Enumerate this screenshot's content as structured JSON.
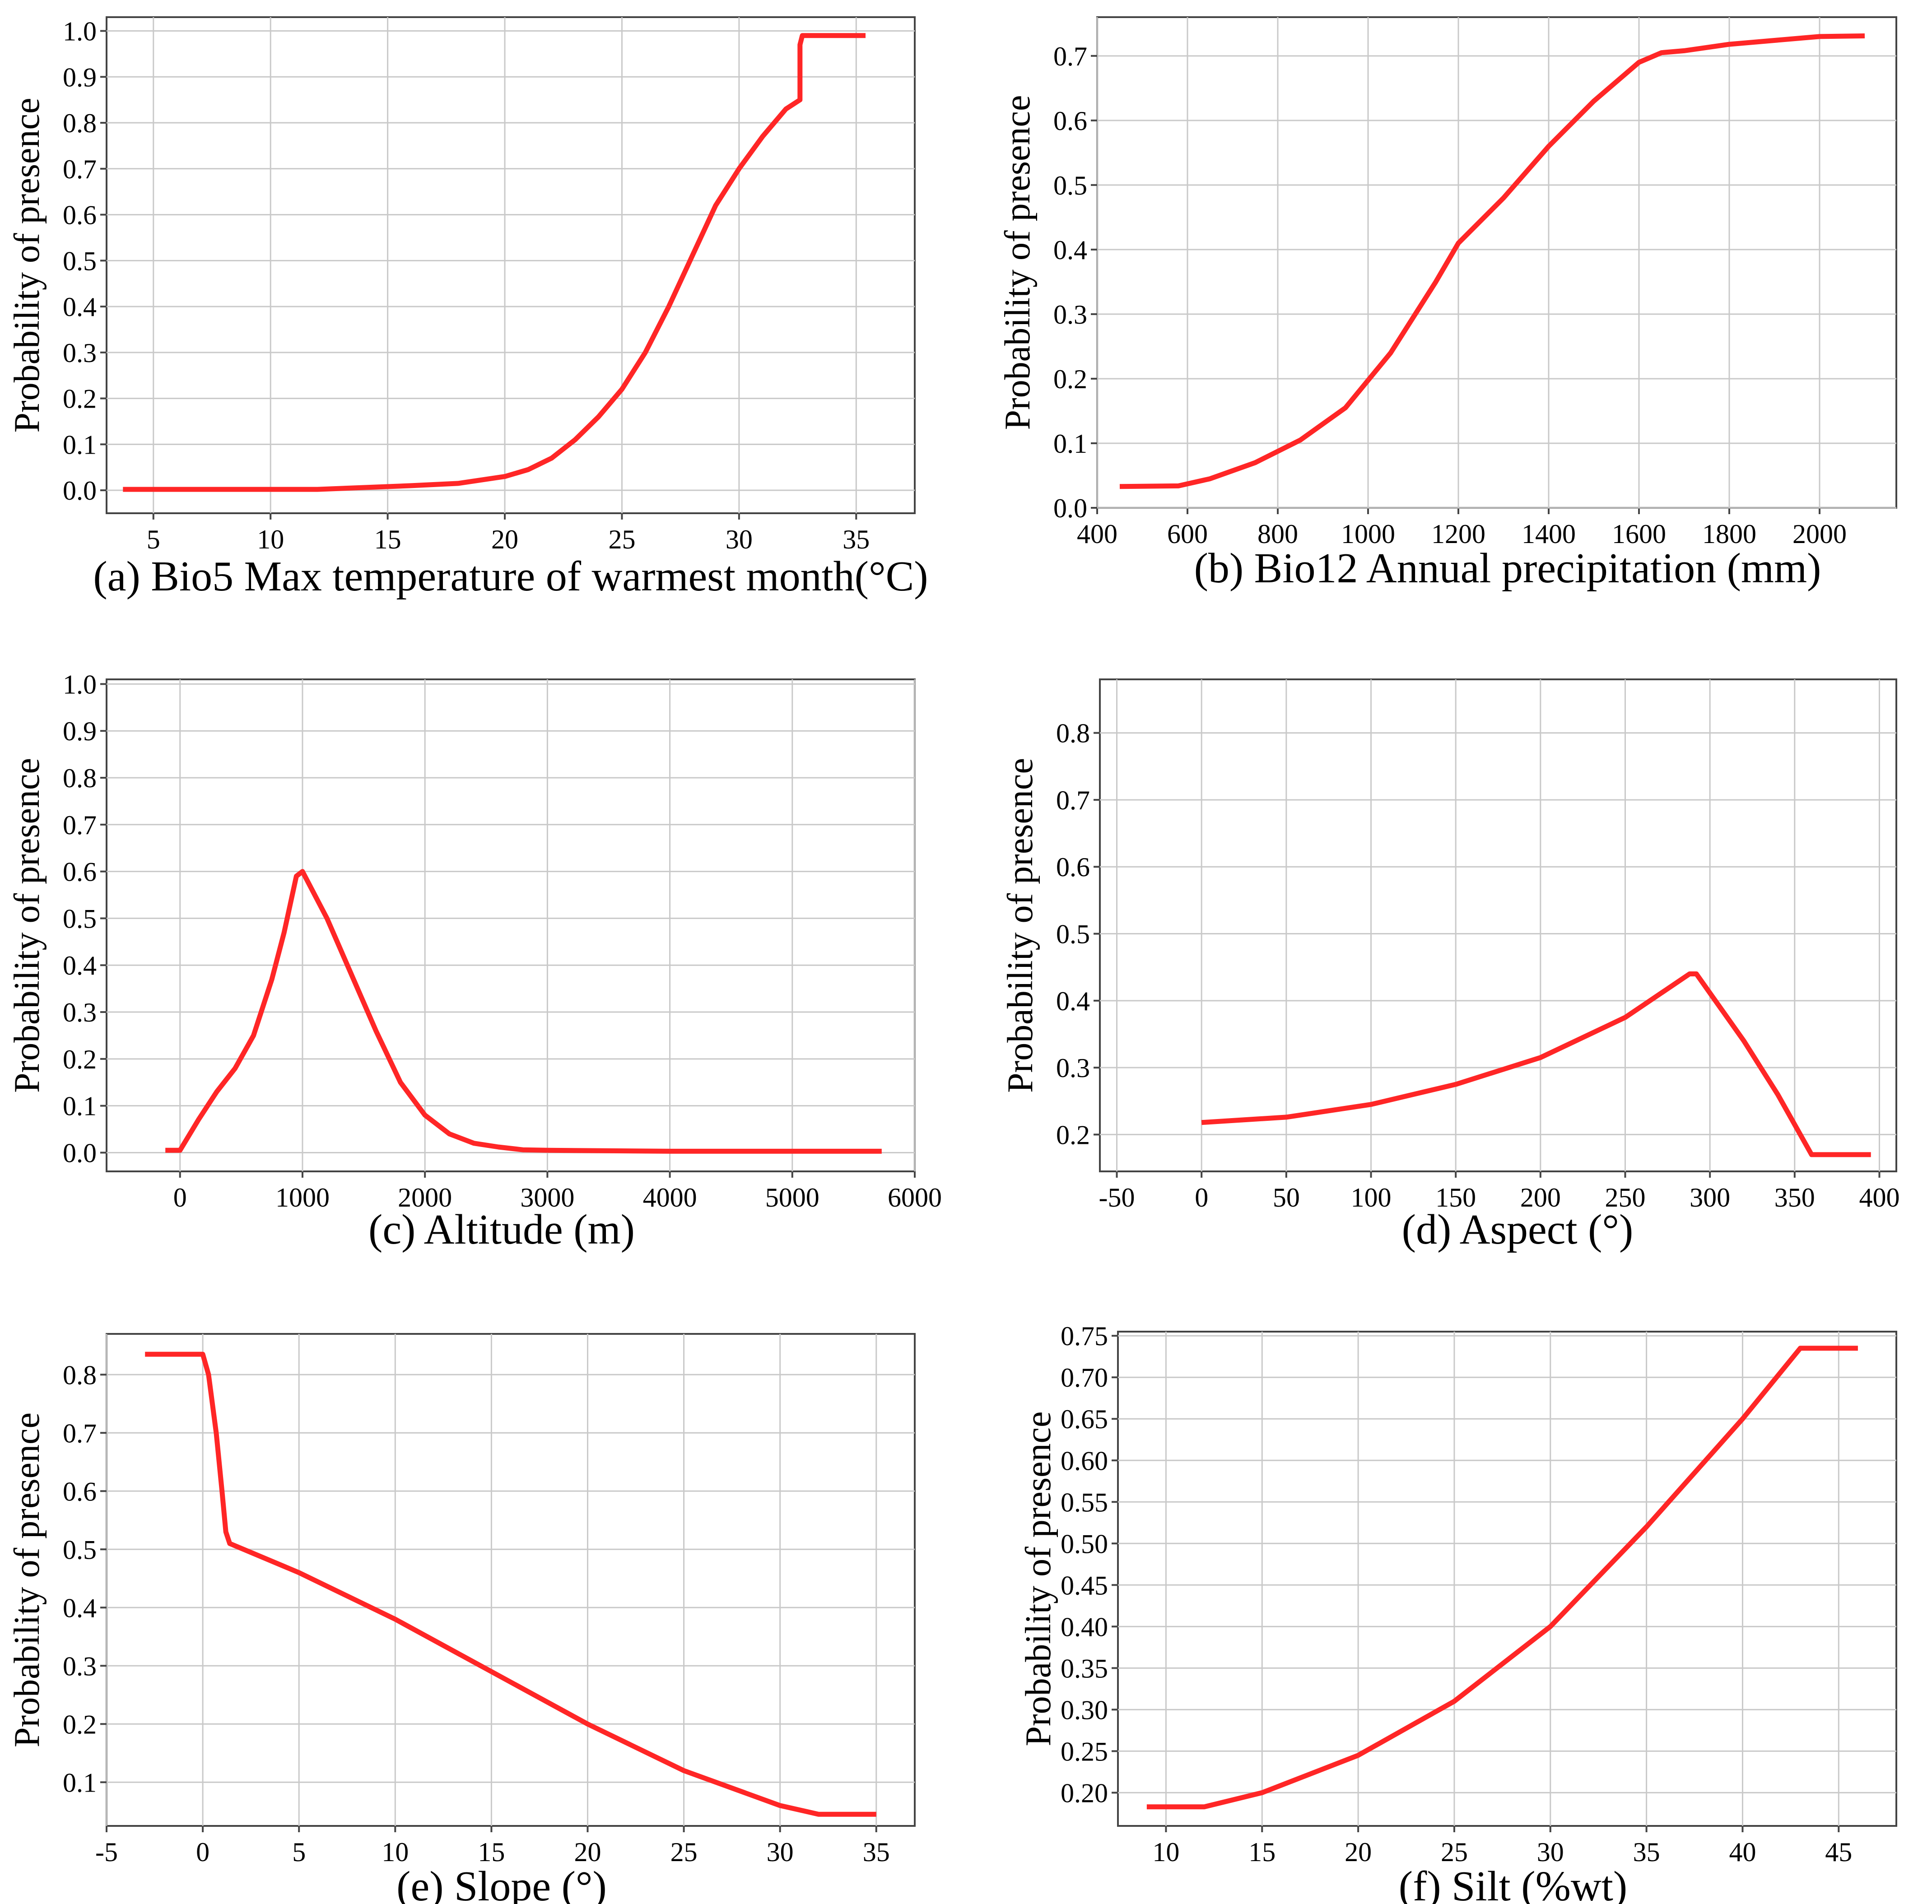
{
  "colors": {
    "line": "#ff2626",
    "grid": "#c9c9c9",
    "axes": "#444444",
    "background": "#ffffff"
  },
  "chart_data": [
    {
      "type": "line",
      "caption": "(a) Bio5 Max temperature of warmest month(°C)",
      "ylabel": "Probability of presence",
      "xlim": [
        3,
        37.5
      ],
      "ylim": [
        -0.05,
        1.03
      ],
      "xticks": [
        5,
        10,
        15,
        20,
        25,
        30,
        35
      ],
      "yticks": [
        0.0,
        0.1,
        0.2,
        0.3,
        0.4,
        0.5,
        0.6,
        0.7,
        0.8,
        0.9,
        1.0
      ],
      "yticklabels": [
        "0.0",
        "0.1",
        "0.2",
        "0.3",
        "0.4",
        "0.5",
        "0.6",
        "0.7",
        "0.8",
        "0.9",
        "1.0"
      ],
      "x": [
        3.7,
        12,
        16,
        18,
        20,
        21,
        22,
        23,
        24,
        25,
        26,
        27,
        28,
        29,
        30,
        31,
        32,
        32.6,
        32.6,
        32.7,
        35.4
      ],
      "y": [
        0.002,
        0.002,
        0.01,
        0.015,
        0.03,
        0.045,
        0.07,
        0.11,
        0.16,
        0.22,
        0.3,
        0.4,
        0.51,
        0.62,
        0.7,
        0.77,
        0.83,
        0.85,
        0.97,
        0.99,
        0.99
      ]
    },
    {
      "type": "line",
      "caption": "(b) Bio12 Annual precipitation (mm)",
      "ylabel": "Probability of presence",
      "xlim": [
        400,
        2170
      ],
      "ylim": [
        0,
        0.76
      ],
      "xticks": [
        400,
        600,
        800,
        1000,
        1200,
        1400,
        1600,
        1800,
        2000
      ],
      "yticks": [
        0.0,
        0.1,
        0.2,
        0.3,
        0.4,
        0.5,
        0.6,
        0.7
      ],
      "yticklabels": [
        "0.0",
        "0.1",
        "0.2",
        "0.3",
        "0.4",
        "0.5",
        "0.6",
        "0.7"
      ],
      "x": [
        450,
        580,
        650,
        750,
        850,
        950,
        1050,
        1150,
        1200,
        1300,
        1400,
        1500,
        1600,
        1650,
        1700,
        1800,
        1900,
        2000,
        2100
      ],
      "y": [
        0.033,
        0.034,
        0.045,
        0.07,
        0.105,
        0.155,
        0.24,
        0.35,
        0.41,
        0.48,
        0.56,
        0.63,
        0.69,
        0.705,
        0.708,
        0.718,
        0.724,
        0.73,
        0.731
      ]
    },
    {
      "type": "line",
      "caption": "(c)   Altitude (m)",
      "ylabel": "Probability of presence",
      "xlim": [
        -600,
        6000
      ],
      "ylim": [
        -0.04,
        1.01
      ],
      "xticks": [
        0,
        1000,
        2000,
        3000,
        4000,
        5000,
        6000
      ],
      "yticks": [
        0.0,
        0.1,
        0.2,
        0.3,
        0.4,
        0.5,
        0.6,
        0.7,
        0.8,
        0.9,
        1.0
      ],
      "yticklabels": [
        "0.0",
        "0.1",
        "0.2",
        "0.3",
        "0.4",
        "0.5",
        "0.6",
        "0.7",
        "0.8",
        "0.9",
        "1.0"
      ],
      "x": [
        -120,
        0,
        150,
        300,
        450,
        600,
        750,
        850,
        950,
        1000,
        1200,
        1400,
        1600,
        1800,
        2000,
        2200,
        2400,
        2600,
        2800,
        3000,
        4000,
        5000,
        5730
      ],
      "y": [
        0.005,
        0.005,
        0.07,
        0.13,
        0.18,
        0.25,
        0.37,
        0.47,
        0.59,
        0.6,
        0.5,
        0.38,
        0.26,
        0.15,
        0.08,
        0.04,
        0.02,
        0.012,
        0.006,
        0.005,
        0.003,
        0.003,
        0.003
      ]
    },
    {
      "type": "line",
      "caption": "(d)  Aspect (°)",
      "ylabel": "Probability of presence",
      "xlim": [
        -60,
        410
      ],
      "ylim": [
        0.145,
        0.88
      ],
      "xticks": [
        -50,
        0,
        50,
        100,
        150,
        200,
        250,
        300,
        350,
        400
      ],
      "yticks": [
        0.2,
        0.3,
        0.4,
        0.5,
        0.6,
        0.7,
        0.8
      ],
      "yticklabels": [
        "0.2",
        "0.3",
        "0.4",
        "0.5",
        "0.6",
        "0.7",
        "0.8"
      ],
      "x": [
        0,
        50,
        100,
        150,
        200,
        250,
        288,
        292,
        320,
        340,
        360,
        395
      ],
      "y": [
        0.218,
        0.226,
        0.245,
        0.275,
        0.315,
        0.375,
        0.44,
        0.44,
        0.34,
        0.26,
        0.17,
        0.17
      ]
    },
    {
      "type": "line",
      "caption": "(e)  Slope  (°)",
      "ylabel": "Probability of presence",
      "xlim": [
        -5,
        37
      ],
      "ylim": [
        0.025,
        0.87
      ],
      "xticks": [
        -5,
        0,
        5,
        10,
        15,
        20,
        25,
        30,
        35
      ],
      "yticks": [
        0.1,
        0.2,
        0.3,
        0.4,
        0.5,
        0.6,
        0.7,
        0.8
      ],
      "yticklabels": [
        "0.1",
        "0.2",
        "0.3",
        "0.4",
        "0.5",
        "0.6",
        "0.7",
        "0.8"
      ],
      "x": [
        -3,
        0,
        0.3,
        0.7,
        1.0,
        1.2,
        1.4,
        5,
        10,
        15,
        20,
        25,
        30,
        32,
        35
      ],
      "y": [
        0.835,
        0.835,
        0.8,
        0.7,
        0.6,
        0.53,
        0.51,
        0.46,
        0.38,
        0.29,
        0.2,
        0.12,
        0.06,
        0.045,
        0.045
      ]
    },
    {
      "type": "line",
      "caption": "(f)  Silt (%wt)",
      "ylabel": "Probability of presence",
      "xlim": [
        7.5,
        48
      ],
      "ylim": [
        0.16,
        0.755
      ],
      "xticks": [
        10,
        15,
        20,
        25,
        30,
        35,
        40,
        45
      ],
      "yticks": [
        0.2,
        0.25,
        0.3,
        0.35,
        0.4,
        0.45,
        0.5,
        0.55,
        0.6,
        0.65,
        0.7,
        0.75
      ],
      "yticklabels": [
        "0.20",
        "0.25",
        "0.30",
        "0.35",
        "0.40",
        "0.45",
        "0.50",
        "0.55",
        "0.60",
        "0.65",
        "0.70",
        "0.75"
      ],
      "x": [
        9,
        12,
        15,
        20,
        25,
        30,
        35,
        40,
        43,
        46
      ],
      "y": [
        0.183,
        0.183,
        0.2,
        0.245,
        0.31,
        0.4,
        0.52,
        0.65,
        0.735,
        0.735
      ]
    }
  ]
}
